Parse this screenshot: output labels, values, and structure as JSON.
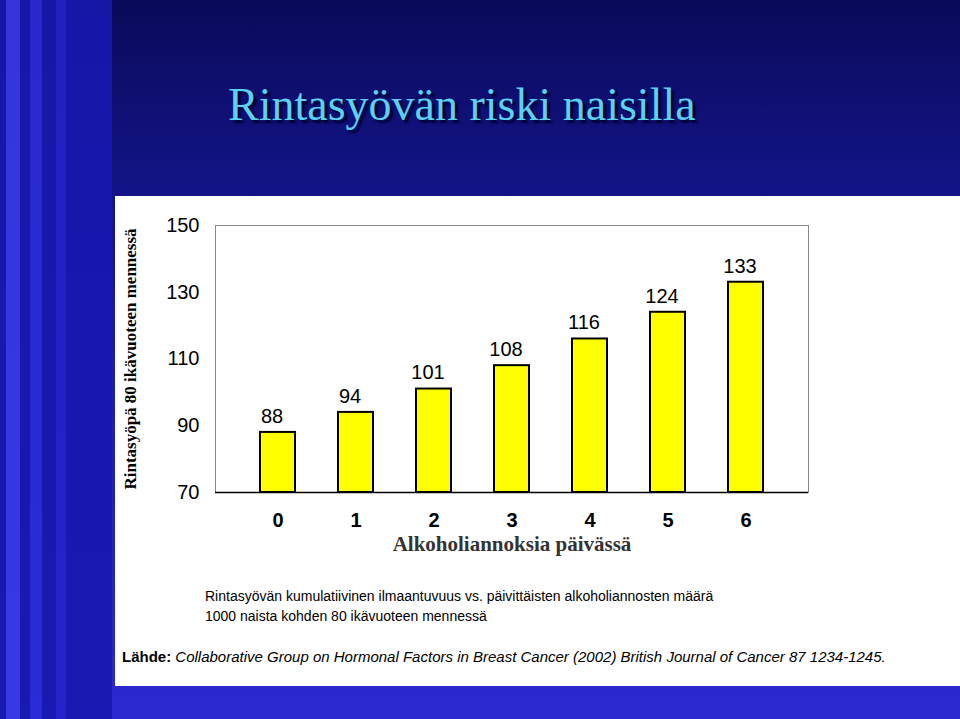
{
  "chart_data": {
    "type": "bar",
    "title": "Rintasyövän riski naisilla",
    "x_label": "Alkoholiannoksia päivässä",
    "y_label": "Rintasyöpä 80 ikävuoteen mennessä",
    "categories": [
      "0",
      "1",
      "2",
      "3",
      "4",
      "5",
      "6"
    ],
    "values": [
      88,
      94,
      101,
      108,
      116,
      124,
      133
    ],
    "color": "#ffff00",
    "ylim": [
      70,
      150
    ],
    "yticks": [
      70,
      90,
      110,
      130,
      150
    ],
    "grid": false,
    "data_labels": true,
    "caption": [
      "Rintasyövän kumulatiivinen ilmaantuvuus vs. päivittäisten alkoholiannosten määrä",
      "1000 naista kohden 80 ikävuoteen mennessä"
    ],
    "source": {
      "label": "Lähde:",
      "text": "Collaborative Group on Hormonal Factors in Breast Cancer (2002) British Journal of Cancer 87 1234-1245."
    }
  }
}
